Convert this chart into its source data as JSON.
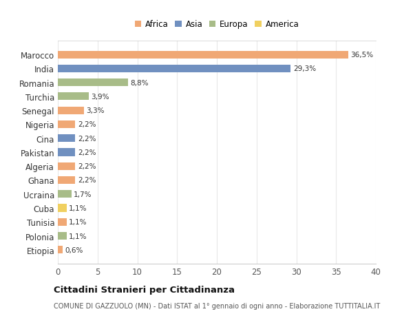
{
  "countries": [
    "Marocco",
    "India",
    "Romania",
    "Turchia",
    "Senegal",
    "Nigeria",
    "Cina",
    "Pakistan",
    "Algeria",
    "Ghana",
    "Ucraina",
    "Cuba",
    "Tunisia",
    "Polonia",
    "Etiopia"
  ],
  "values": [
    36.5,
    29.3,
    8.8,
    3.9,
    3.3,
    2.2,
    2.2,
    2.2,
    2.2,
    2.2,
    1.7,
    1.1,
    1.1,
    1.1,
    0.6
  ],
  "labels": [
    "36,5%",
    "29,3%",
    "8,8%",
    "3,9%",
    "3,3%",
    "2,2%",
    "2,2%",
    "2,2%",
    "2,2%",
    "2,2%",
    "1,7%",
    "1,1%",
    "1,1%",
    "1,1%",
    "0,6%"
  ],
  "continents": [
    "Africa",
    "Asia",
    "Europa",
    "Europa",
    "Africa",
    "Africa",
    "Asia",
    "Asia",
    "Africa",
    "Africa",
    "Europa",
    "America",
    "Africa",
    "Europa",
    "Africa"
  ],
  "colors": {
    "Africa": "#F0A875",
    "Asia": "#7090C0",
    "Europa": "#A8BC88",
    "America": "#F0D060"
  },
  "legend_order": [
    "Africa",
    "Asia",
    "Europa",
    "America"
  ],
  "title": "Cittadini Stranieri per Cittadinanza",
  "subtitle": "COMUNE DI GAZZUOLO (MN) - Dati ISTAT al 1° gennaio di ogni anno - Elaborazione TUTTITALIA.IT",
  "xlim": [
    0,
    40
  ],
  "xticks": [
    0,
    5,
    10,
    15,
    20,
    25,
    30,
    35,
    40
  ],
  "bg_color": "#ffffff",
  "grid_color": "#e8e8e8"
}
